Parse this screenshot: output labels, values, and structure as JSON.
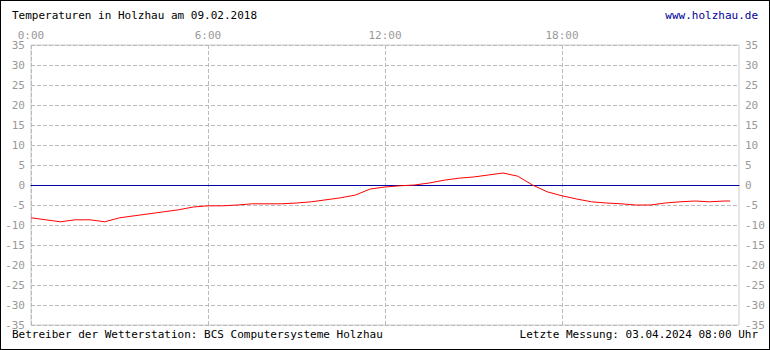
{
  "chart_data": {
    "type": "line",
    "title": "Temperaturen in Holzhau am 09.02.2018",
    "annotations": [
      "www.holzhau.de",
      "Betreiber der Wetterstation: BCS Computersysteme Holzhau",
      "Letzte Messung: 03.04.2024 08:00 Uhr"
    ],
    "x": [
      0,
      0.5,
      1,
      1.5,
      2,
      2.5,
      3,
      3.5,
      4,
      4.5,
      5,
      5.5,
      6,
      6.5,
      7,
      7.5,
      8,
      8.5,
      9,
      9.5,
      10,
      10.5,
      11,
      11.5,
      12,
      12.5,
      13,
      13.5,
      14,
      14.5,
      15,
      15.5,
      16,
      16.5,
      17,
      17.5,
      18,
      18.5,
      19,
      19.5,
      20,
      20.5,
      21,
      21.5,
      22,
      22.5,
      23,
      23.5,
      23.7
    ],
    "values": [
      -8.2,
      -8.7,
      -9.2,
      -8.7,
      -8.7,
      -9.2,
      -8.2,
      -7.7,
      -7.2,
      -6.7,
      -6.2,
      -5.5,
      -5.2,
      -5.2,
      -5.0,
      -4.7,
      -4.7,
      -4.7,
      -4.5,
      -4.2,
      -3.7,
      -3.2,
      -2.5,
      -1.0,
      -0.5,
      -0.2,
      0.0,
      0.5,
      1.2,
      1.7,
      2.0,
      2.5,
      3.0,
      2.2,
      0.0,
      -1.7,
      -2.7,
      -3.5,
      -4.2,
      -4.5,
      -4.7,
      -5.0,
      -5.0,
      -4.5,
      -4.2,
      -4.0,
      -4.2,
      -4.0,
      -4.0
    ],
    "color": "#ff0000",
    "xlim": [
      0,
      24
    ],
    "xticks": [
      {
        "value": 0,
        "label": "0:00"
      },
      {
        "value": 6,
        "label": "6:00"
      },
      {
        "value": 12,
        "label": "12:00"
      },
      {
        "value": 18,
        "label": "18:00"
      }
    ],
    "ylim": [
      -35,
      35
    ],
    "yticks": [
      -35,
      -30,
      -25,
      -20,
      -15,
      -10,
      -5,
      0,
      5,
      10,
      15,
      20,
      25,
      30,
      35
    ],
    "grid": true
  }
}
